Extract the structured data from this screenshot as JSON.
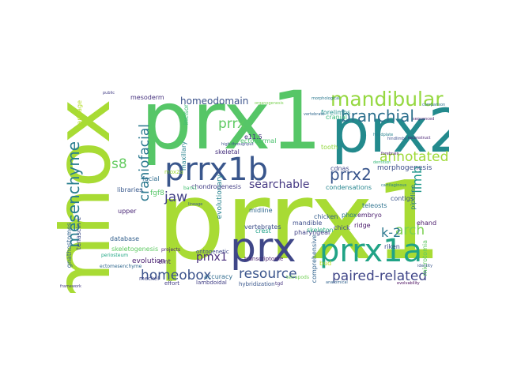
{
  "cloud": {
    "words": [
      {
        "text": "prrx1",
        "color": "#a8db34"
      },
      {
        "text": "mhox",
        "color": "#a8db34"
      },
      {
        "text": "prx1",
        "color": "#56c667"
      },
      {
        "text": "prx2",
        "color": "#238a8d"
      },
      {
        "text": "prrx1b",
        "color": "#39568c"
      },
      {
        "text": "prx",
        "color": "#3f4788"
      },
      {
        "text": "prrx1a",
        "color": "#20a386"
      },
      {
        "text": "mandibular",
        "color": "#95d840"
      },
      {
        "text": "branchial",
        "color": "#2d708e"
      },
      {
        "text": "prrx2",
        "color": "#39558c"
      },
      {
        "text": "mesenchyme",
        "color": "#287d8e"
      },
      {
        "text": "craniofacial",
        "color": "#2a788e"
      },
      {
        "text": "annotated",
        "color": "#a0da39"
      },
      {
        "text": "homeobox",
        "color": "#3b528b"
      },
      {
        "text": "paired-related",
        "color": "#404688"
      },
      {
        "text": "resource",
        "color": "#3a548c"
      },
      {
        "text": "searchable",
        "color": "#453882"
      },
      {
        "text": "prrx",
        "color": "#5ec962"
      },
      {
        "text": "limb",
        "color": "#1f978b"
      },
      {
        "text": "arch",
        "color": "#7ad151"
      },
      {
        "text": "k-2",
        "color": "#2a788e"
      },
      {
        "text": "jaw",
        "color": "#424086"
      },
      {
        "text": "s8",
        "color": "#63cb5f"
      },
      {
        "text": "pmx1",
        "color": "#472c7a"
      },
      {
        "text": "homeodomain",
        "color": "#3b528b"
      },
      {
        "text": "chondrogenesis",
        "color": "#433e85"
      },
      {
        "text": "morphogenesis",
        "color": "#3d4e8a"
      },
      {
        "text": "condensations",
        "color": "#25858e"
      },
      {
        "text": "libraries",
        "color": "#38588c"
      },
      {
        "text": "teleosts",
        "color": "#2c728e"
      },
      {
        "text": "evolutionary",
        "color": "#26828e"
      },
      {
        "text": "pipeline",
        "color": "#2a768e"
      },
      {
        "text": "skeletal",
        "color": "#46307e"
      },
      {
        "text": "cdnas",
        "color": "#3e4989"
      },
      {
        "text": "fgf8",
        "color": "#56c667"
      },
      {
        "text": "mandible",
        "color": "#3d4d8a"
      },
      {
        "text": "chicken",
        "color": "#365d8d"
      },
      {
        "text": "evolution",
        "color": "#481d6f"
      },
      {
        "text": "accuracy",
        "color": "#2f6b8e"
      },
      {
        "text": "database",
        "color": "#34608d"
      },
      {
        "text": "facial",
        "color": "#2f6c8e"
      },
      {
        "text": "maxillary",
        "color": "#26828e"
      },
      {
        "text": "forelimbs",
        "color": "#21908d"
      },
      {
        "text": "tooth",
        "color": "#95d840"
      },
      {
        "text": "upper",
        "color": "#482575"
      },
      {
        "text": "skeleton",
        "color": "#28ae80"
      },
      {
        "text": "skeletogenesis",
        "color": "#5ec962"
      },
      {
        "text": "cranial",
        "color": "#35b779"
      },
      {
        "text": "vertebrates",
        "color": "#3c4f8a"
      },
      {
        "text": "midline",
        "color": "#31688e"
      },
      {
        "text": "contigs",
        "color": "#3a538b"
      },
      {
        "text": "pharyngeal",
        "color": "#414287"
      },
      {
        "text": "crest",
        "color": "#1fa088"
      },
      {
        "text": "embryo",
        "color": "#481b6d"
      },
      {
        "text": "ridge",
        "color": "#48186a"
      },
      {
        "text": "riken",
        "color": "#3d4d8a"
      },
      {
        "text": "chick",
        "color": "#3e4a89"
      },
      {
        "text": "ehand",
        "color": "#481769"
      },
      {
        "text": "mesoderm",
        "color": "#46327e"
      },
      {
        "text": "ectodermal",
        "color": "#4ac16d"
      },
      {
        "text": "incisor",
        "color": "#3bbb75"
      },
      {
        "text": "cartilage",
        "color": "#b5de2b"
      },
      {
        "text": "tenascin-c",
        "color": "#3e4c8a"
      },
      {
        "text": "gnathostomes",
        "color": "#32648e"
      },
      {
        "text": "microtomia",
        "color": "#5ec962"
      },
      {
        "text": "comprehensive",
        "color": "#32648e"
      },
      {
        "text": "transcriptome",
        "color": "#481f70"
      },
      {
        "text": "e11.5",
        "color": "#46337f"
      },
      {
        "text": "emt",
        "color": "#482677"
      },
      {
        "text": "bud",
        "color": "#bddf26"
      },
      {
        "text": "mox2a",
        "color": "#a0da39"
      },
      {
        "text": "projects",
        "color": "#482173"
      },
      {
        "text": "effort",
        "color": "#433d84"
      },
      {
        "text": "ontogenetic",
        "color": "#3e4a89"
      },
      {
        "text": "lambdoidal",
        "color": "#423f85"
      },
      {
        "text": "hybridization",
        "color": "#39568c"
      },
      {
        "text": "phox",
        "color": "#2b758e"
      },
      {
        "text": "ectomesenchyme",
        "color": "#31688e"
      },
      {
        "text": "meckel",
        "color": "#3f4788"
      },
      {
        "text": "barx1",
        "color": "#44bf70"
      },
      {
        "text": "tgd",
        "color": "#463480"
      },
      {
        "text": "forebrain",
        "color": "#48196b"
      },
      {
        "text": "periosteum",
        "color": "#22a785"
      },
      {
        "text": "sequenced",
        "color": "#481f70"
      },
      {
        "text": "organogenesis",
        "color": "#7ad151"
      },
      {
        "text": "high-throughput",
        "color": "#3b528b"
      },
      {
        "text": "handplate",
        "color": "#26828e"
      },
      {
        "text": "hindlimbs",
        "color": "#3c508b"
      },
      {
        "text": "cartilaginous",
        "color": "#297b8e"
      },
      {
        "text": "dentition",
        "color": "#35b779"
      },
      {
        "text": "identity",
        "color": "#39568c"
      },
      {
        "text": "comparison",
        "color": "#2d718e"
      },
      {
        "text": "framework",
        "color": "#443a83"
      },
      {
        "text": "tetrapods",
        "color": "#73d056"
      },
      {
        "text": "public",
        "color": "#433e85"
      },
      {
        "text": "anatomical",
        "color": "#33638d"
      },
      {
        "text": "reconstruct",
        "color": "#482374"
      },
      {
        "text": "morphological",
        "color": "#2a788e"
      },
      {
        "text": "evolvability",
        "color": "#46075a"
      },
      {
        "text": "lineage",
        "color": "#38588c"
      },
      {
        "text": "vertebrate",
        "color": "#31688e"
      }
    ]
  }
}
